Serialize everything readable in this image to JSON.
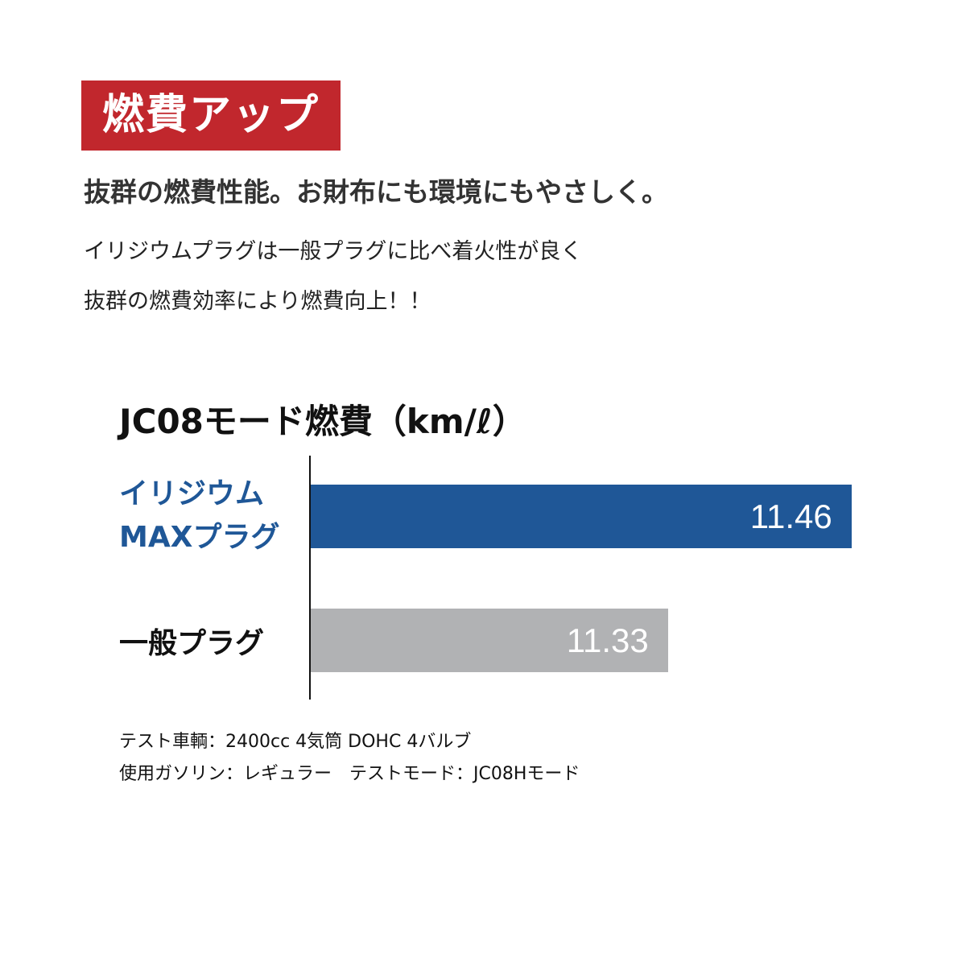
{
  "badge": {
    "text": "燃費アップ",
    "color": "#c1272d"
  },
  "headline": "抜群の燃費性能。お財布にも環境にもやさしく。",
  "description": [
    "イリジウムプラグは一般プラグに比べ着火性が良く",
    "抜群の燃費効率により燃費向上！！"
  ],
  "chart_data": {
    "type": "bar",
    "orientation": "horizontal",
    "title": "JC08モード燃費（km/ℓ）",
    "categories": [
      "イリジウム MAXプラグ",
      "一般プラグ"
    ],
    "category_lines": [
      [
        "イリジウム",
        "MAXプラグ"
      ],
      [
        "一般プラグ"
      ]
    ],
    "values": [
      11.46,
      11.33
    ],
    "value_labels": [
      "11.46",
      "11.33"
    ],
    "colors": [
      "#1f5797",
      "#b1b2b4"
    ],
    "label_colors": [
      "#1f5797",
      "#111111"
    ],
    "grid": false
  },
  "notes": [
    "テスト車輌：2400cc 4気筒 DOHC 4バルブ",
    "使用ガソリン：レギュラー　テストモード：JC08Hモード"
  ]
}
